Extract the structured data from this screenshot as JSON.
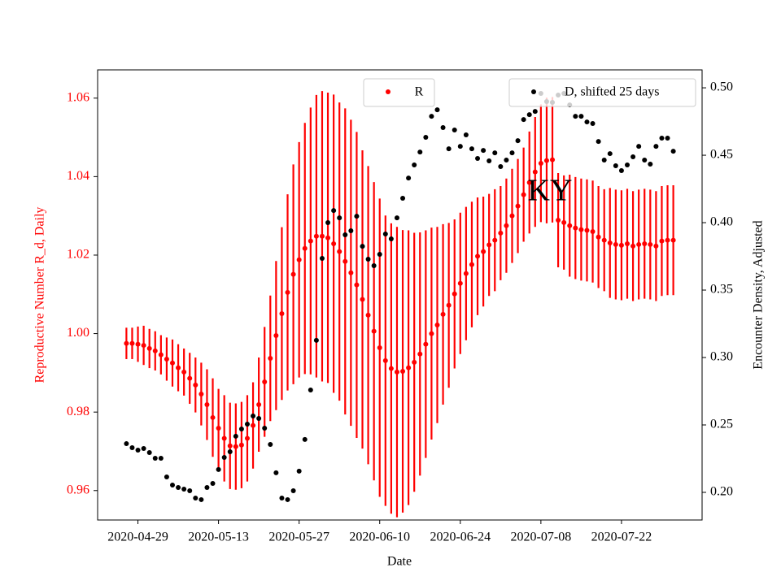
{
  "chart_data": {
    "type": "scatter",
    "xlabel": "Date",
    "ylabel": "Reproductive Number R_d, Daily",
    "y2label": "Encounter Density, Adjusted",
    "annotation": "KY",
    "x": [
      "2020-04-27",
      "2020-04-28",
      "2020-04-29",
      "2020-04-30",
      "2020-05-01",
      "2020-05-02",
      "2020-05-03",
      "2020-05-04",
      "2020-05-05",
      "2020-05-06",
      "2020-05-07",
      "2020-05-08",
      "2020-05-09",
      "2020-05-10",
      "2020-05-11",
      "2020-05-12",
      "2020-05-13",
      "2020-05-14",
      "2020-05-15",
      "2020-05-16",
      "2020-05-17",
      "2020-05-18",
      "2020-05-19",
      "2020-05-20",
      "2020-05-21",
      "2020-05-22",
      "2020-05-23",
      "2020-05-24",
      "2020-05-25",
      "2020-05-26",
      "2020-05-27",
      "2020-05-28",
      "2020-05-29",
      "2020-05-30",
      "2020-05-31",
      "2020-06-01",
      "2020-06-02",
      "2020-06-03",
      "2020-06-04",
      "2020-06-05",
      "2020-06-06",
      "2020-06-07",
      "2020-06-08",
      "2020-06-09",
      "2020-06-10",
      "2020-06-11",
      "2020-06-12",
      "2020-06-13",
      "2020-06-14",
      "2020-06-15",
      "2020-06-16",
      "2020-06-17",
      "2020-06-18",
      "2020-06-19",
      "2020-06-20",
      "2020-06-21",
      "2020-06-22",
      "2020-06-23",
      "2020-06-24",
      "2020-06-25",
      "2020-06-26",
      "2020-06-27",
      "2020-06-28",
      "2020-06-29",
      "2020-06-30",
      "2020-07-01",
      "2020-07-02",
      "2020-07-03",
      "2020-07-04",
      "2020-07-05",
      "2020-07-06",
      "2020-07-07",
      "2020-07-08",
      "2020-07-09",
      "2020-07-10",
      "2020-07-11",
      "2020-07-12",
      "2020-07-13",
      "2020-07-14",
      "2020-07-15",
      "2020-07-16",
      "2020-07-17",
      "2020-07-18",
      "2020-07-19",
      "2020-07-20",
      "2020-07-21",
      "2020-07-22",
      "2020-07-23",
      "2020-07-24",
      "2020-07-25",
      "2020-07-26",
      "2020-07-27",
      "2020-07-28",
      "2020-07-29",
      "2020-07-30",
      "2020-07-31"
    ],
    "xlim": [
      "2020-04-22",
      "2020-08-05"
    ],
    "xticks": [
      "2020-04-29",
      "2020-05-13",
      "2020-05-27",
      "2020-06-10",
      "2020-06-24",
      "2020-07-08",
      "2020-07-22"
    ],
    "ylim": [
      0.9525,
      1.0672
    ],
    "yticks": [
      0.96,
      0.98,
      {
        "value": 1,
        "label": "1.00"
      },
      1.02,
      1.04,
      1.06
    ],
    "y2lim": [
      0.1795,
      0.5133
    ],
    "y2ticks": [
      {
        "value": 0.2,
        "label": "0.20"
      },
      0.25,
      {
        "value": 0.3,
        "label": "0.30"
      },
      0.35,
      {
        "value": 0.4,
        "label": "0.40"
      },
      0.45,
      {
        "value": 0.5,
        "label": "0.50"
      }
    ],
    "series": [
      {
        "name": "R",
        "color": "#ff0000",
        "legend_loc": "upper center",
        "values": [
          0.9975,
          0.9975,
          0.9973,
          0.997,
          0.9962,
          0.9956,
          0.9946,
          0.9935,
          0.9925,
          0.9913,
          0.9902,
          0.9886,
          0.9869,
          0.9846,
          0.9819,
          0.9786,
          0.9759,
          0.9733,
          0.9714,
          0.9712,
          0.9716,
          0.9733,
          0.9766,
          0.9819,
          0.9877,
          0.9937,
          0.9995,
          1.0051,
          1.0105,
          1.0151,
          1.0188,
          1.0217,
          1.0236,
          1.0248,
          1.0248,
          1.0244,
          1.0229,
          1.0209,
          1.0184,
          1.0155,
          1.0124,
          1.0087,
          1.0047,
          1.0006,
          0.9964,
          0.9931,
          0.9911,
          0.9902,
          0.9904,
          0.9913,
          0.9927,
          0.9948,
          0.9973,
          1.0,
          1.0022,
          1.0049,
          1.0072,
          1.0101,
          1.0128,
          1.0153,
          1.0176,
          1.0197,
          1.0209,
          1.0226,
          1.0238,
          1.0256,
          1.0275,
          1.03,
          1.0325,
          1.0354,
          1.0385,
          1.0412,
          1.0434,
          1.0441,
          1.0443,
          1.0289,
          1.0283,
          1.0275,
          1.0269,
          1.0265,
          1.0263,
          1.026,
          1.0246,
          1.0238,
          1.0231,
          1.0227,
          1.0225,
          1.0229,
          1.0223,
          1.0227,
          1.0229,
          1.0227,
          1.0223,
          1.0236,
          1.0238,
          1.0238
        ],
        "errors": [
          0.004,
          0.004,
          0.0045,
          0.005,
          0.005,
          0.005,
          0.005,
          0.0055,
          0.006,
          0.006,
          0.006,
          0.0065,
          0.007,
          0.008,
          0.009,
          0.01,
          0.01,
          0.011,
          0.011,
          0.011,
          0.011,
          0.011,
          0.011,
          0.012,
          0.014,
          0.016,
          0.019,
          0.022,
          0.025,
          0.028,
          0.03,
          0.032,
          0.034,
          0.036,
          0.037,
          0.037,
          0.038,
          0.038,
          0.039,
          0.039,
          0.039,
          0.038,
          0.038,
          0.038,
          0.038,
          0.037,
          0.037,
          0.037,
          0.036,
          0.035,
          0.033,
          0.031,
          0.029,
          0.027,
          0.025,
          0.023,
          0.021,
          0.019,
          0.018,
          0.017,
          0.016,
          0.015,
          0.014,
          0.013,
          0.013,
          0.012,
          0.012,
          0.012,
          0.012,
          0.012,
          0.013,
          0.014,
          0.015,
          0.016,
          0.016,
          0.012,
          0.012,
          0.013,
          0.013,
          0.013,
          0.013,
          0.013,
          0.013,
          0.013,
          0.014,
          0.014,
          0.014,
          0.014,
          0.014,
          0.014,
          0.014,
          0.014,
          0.014,
          0.014,
          0.014,
          0.014
        ]
      },
      {
        "name": "D, shifted 25 days",
        "color": "#000000",
        "axis": "y2",
        "legend_loc": "upper right",
        "values": [
          0.2361,
          0.2331,
          0.2313,
          0.2325,
          0.2295,
          0.2253,
          0.2253,
          0.2114,
          0.2054,
          0.2036,
          0.2024,
          0.2012,
          0.1958,
          0.1946,
          0.2036,
          0.2066,
          0.2169,
          0.2259,
          0.2301,
          0.2416,
          0.247,
          0.2506,
          0.2566,
          0.2548,
          0.2476,
          0.2355,
          0.2145,
          0.1958,
          0.1946,
          0.2012,
          0.2157,
          0.2392,
          0.2759,
          0.3127,
          0.3735,
          0.4,
          0.409,
          0.4036,
          0.391,
          0.394,
          0.4048,
          0.3825,
          0.3729,
          0.3681,
          0.3765,
          0.3916,
          0.388,
          0.4036,
          0.4181,
          0.4331,
          0.4428,
          0.4524,
          0.4633,
          0.4789,
          0.4837,
          0.4705,
          0.4548,
          0.4687,
          0.4566,
          0.4651,
          0.4548,
          0.4476,
          0.4536,
          0.4458,
          0.4518,
          0.4416,
          0.4464,
          0.4518,
          0.4608,
          0.4765,
          0.4801,
          0.4825,
          0.4958,
          0.4898,
          0.4892,
          0.4946,
          0.4958,
          0.4873,
          0.4789,
          0.4789,
          0.4747,
          0.4735,
          0.4602,
          0.4464,
          0.4512,
          0.4422,
          0.4386,
          0.4428,
          0.4488,
          0.4566,
          0.4464,
          0.4434,
          0.4566,
          0.4627,
          0.4627,
          0.453
        ]
      }
    ]
  }
}
